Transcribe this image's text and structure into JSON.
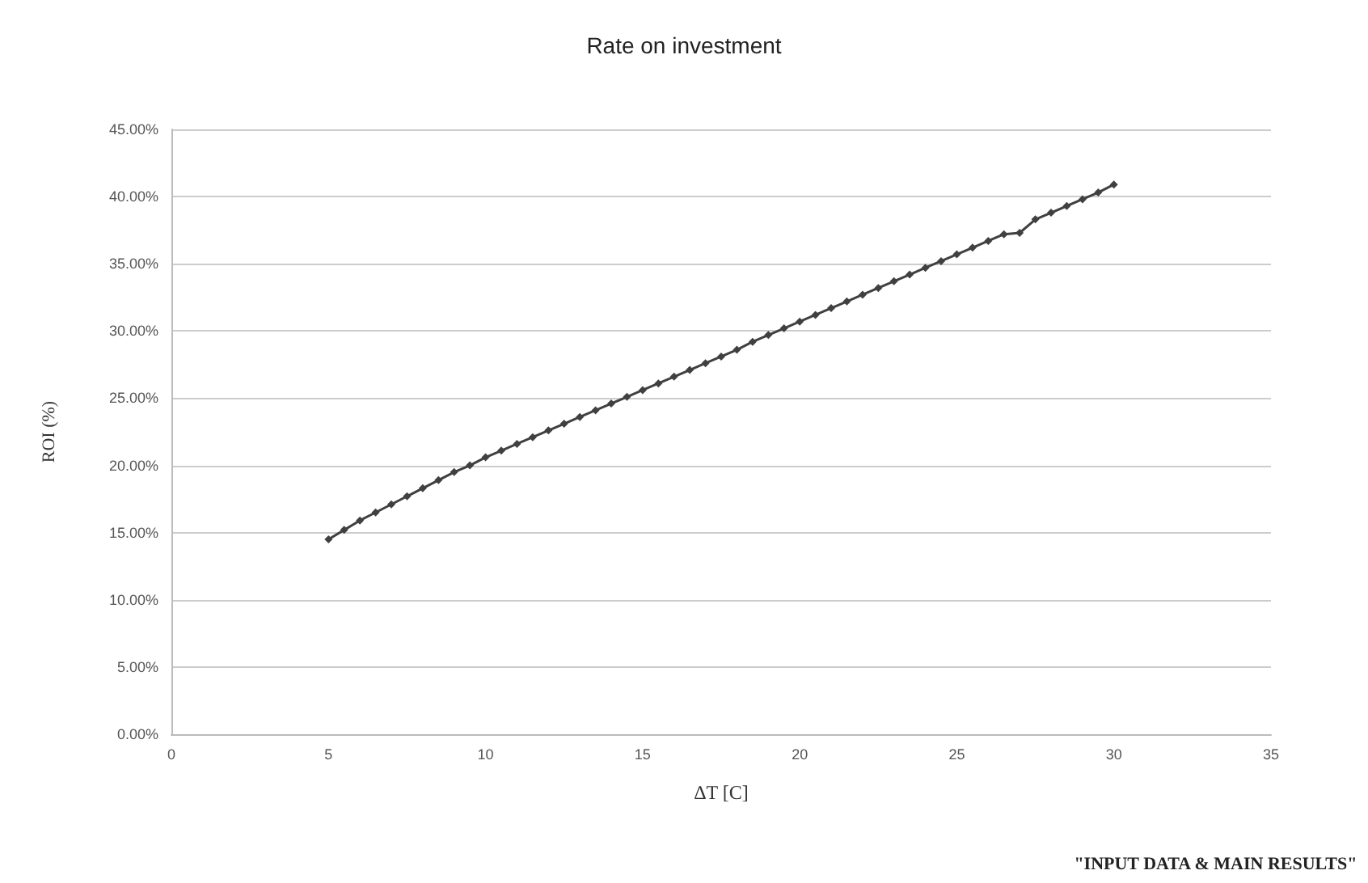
{
  "chart_data": {
    "type": "line",
    "title": "Rate on investment",
    "xlabel": "ΔT [C]",
    "ylabel": "ROI (%)",
    "annotations": [
      "\"INPUT DATA & MAIN RESULTS\""
    ],
    "x": [
      5,
      5.5,
      6,
      6.5,
      7,
      7.5,
      8,
      8.5,
      9,
      9.5,
      10,
      10.5,
      11,
      11.5,
      12,
      12.5,
      13,
      13.5,
      14,
      14.5,
      15,
      15.5,
      16,
      16.5,
      17,
      17.5,
      18,
      18.5,
      19,
      19.5,
      20,
      20.5,
      21,
      21.5,
      22,
      22.5,
      23,
      23.5,
      24,
      24.5,
      25,
      25.5,
      26,
      26.5,
      27,
      27.5,
      28,
      28.5,
      29,
      29.5,
      30
    ],
    "series": [
      {
        "color": "#404040",
        "values": [
          14.5,
          15.2,
          15.9,
          16.5,
          17.1,
          17.7,
          18.3,
          18.9,
          19.5,
          20.0,
          20.6,
          21.1,
          21.6,
          22.1,
          22.6,
          23.1,
          23.6,
          24.1,
          24.6,
          25.1,
          25.6,
          26.1,
          26.6,
          27.1,
          27.6,
          28.1,
          28.6,
          29.2,
          29.7,
          30.2,
          30.7,
          31.2,
          31.7,
          32.2,
          32.7,
          33.2,
          33.7,
          34.2,
          34.7,
          35.2,
          35.7,
          36.2,
          36.7,
          37.2,
          37.3,
          38.3,
          38.8,
          39.3,
          39.8,
          40.3,
          40.9
        ]
      }
    ],
    "xlim": [
      0,
      35
    ],
    "xticks": [
      0,
      5,
      10,
      15,
      20,
      25,
      30,
      35
    ],
    "ylim": [
      0,
      45
    ],
    "yticks": [
      {
        "value": 0,
        "label": "0.00%"
      },
      {
        "value": 5,
        "label": "5.00%"
      },
      {
        "value": 10,
        "label": "10.00%"
      },
      {
        "value": 15,
        "label": "15.00%"
      },
      {
        "value": 20,
        "label": "20.00%"
      },
      {
        "value": 25,
        "label": "25.00%"
      },
      {
        "value": 30,
        "label": "30.00%"
      },
      {
        "value": 35,
        "label": "35.00%"
      },
      {
        "value": 40,
        "label": "40.00%"
      },
      {
        "value": 45,
        "label": "45.00%"
      }
    ],
    "grid": "y",
    "marker": "diamond",
    "line_style": "solid"
  }
}
